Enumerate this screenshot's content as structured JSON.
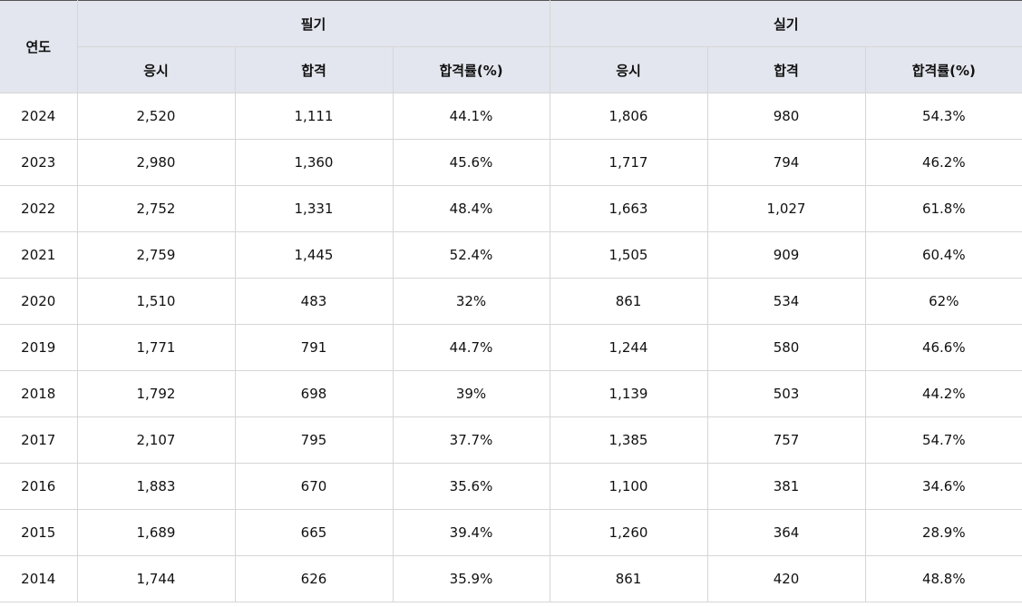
{
  "header": {
    "year": "연도",
    "group_written": "필기",
    "group_practical": "실기",
    "applicants": "응시",
    "passed": "합격",
    "pass_rate": "합격률(%)"
  },
  "rows": [
    {
      "year": "2024",
      "w_app": "2,520",
      "w_pass": "1,111",
      "w_rate": "44.1%",
      "p_app": "1,806",
      "p_pass": "980",
      "p_rate": "54.3%"
    },
    {
      "year": "2023",
      "w_app": "2,980",
      "w_pass": "1,360",
      "w_rate": "45.6%",
      "p_app": "1,717",
      "p_pass": "794",
      "p_rate": "46.2%"
    },
    {
      "year": "2022",
      "w_app": "2,752",
      "w_pass": "1,331",
      "w_rate": "48.4%",
      "p_app": "1,663",
      "p_pass": "1,027",
      "p_rate": "61.8%"
    },
    {
      "year": "2021",
      "w_app": "2,759",
      "w_pass": "1,445",
      "w_rate": "52.4%",
      "p_app": "1,505",
      "p_pass": "909",
      "p_rate": "60.4%"
    },
    {
      "year": "2020",
      "w_app": "1,510",
      "w_pass": "483",
      "w_rate": "32%",
      "p_app": "861",
      "p_pass": "534",
      "p_rate": "62%"
    },
    {
      "year": "2019",
      "w_app": "1,771",
      "w_pass": "791",
      "w_rate": "44.7%",
      "p_app": "1,244",
      "p_pass": "580",
      "p_rate": "46.6%"
    },
    {
      "year": "2018",
      "w_app": "1,792",
      "w_pass": "698",
      "w_rate": "39%",
      "p_app": "1,139",
      "p_pass": "503",
      "p_rate": "44.2%"
    },
    {
      "year": "2017",
      "w_app": "2,107",
      "w_pass": "795",
      "w_rate": "37.7%",
      "p_app": "1,385",
      "p_pass": "757",
      "p_rate": "54.7%"
    },
    {
      "year": "2016",
      "w_app": "1,883",
      "w_pass": "670",
      "w_rate": "35.6%",
      "p_app": "1,100",
      "p_pass": "381",
      "p_rate": "34.6%"
    },
    {
      "year": "2015",
      "w_app": "1,689",
      "w_pass": "665",
      "w_rate": "39.4%",
      "p_app": "1,260",
      "p_pass": "364",
      "p_rate": "28.9%"
    },
    {
      "year": "2014",
      "w_app": "1,744",
      "w_pass": "626",
      "w_rate": "35.9%",
      "p_app": "861",
      "p_pass": "420",
      "p_rate": "48.8%"
    }
  ]
}
